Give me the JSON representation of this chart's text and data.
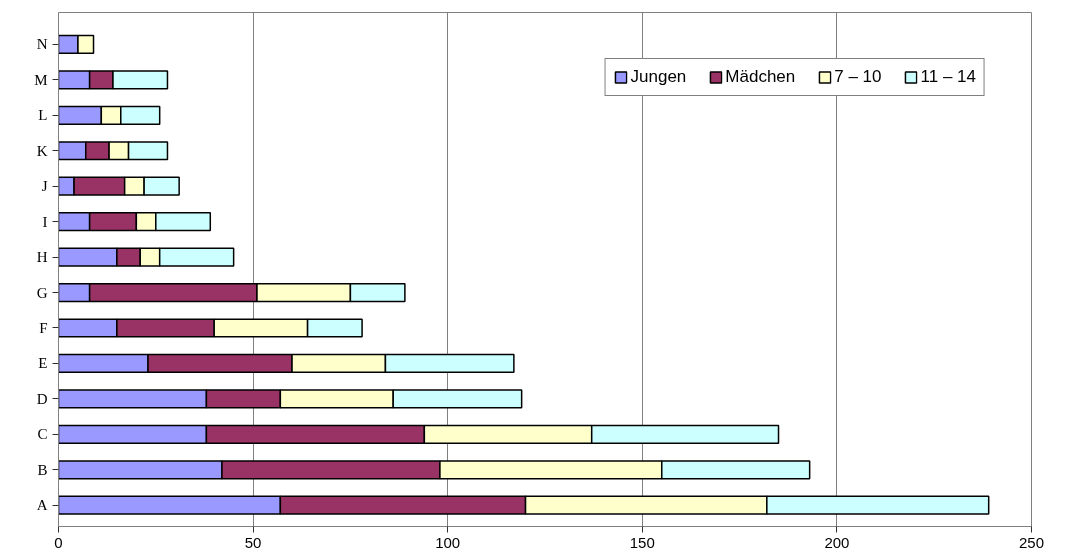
{
  "chart_data": {
    "type": "bar",
    "orientation": "horizontal",
    "stacked": true,
    "categories": [
      "N",
      "M",
      "L",
      "K",
      "J",
      "I",
      "H",
      "G",
      "F",
      "E",
      "D",
      "C",
      "B",
      "A"
    ],
    "series": [
      {
        "name": "Jungen",
        "color": "#9999ff",
        "values": [
          5,
          8,
          11,
          7,
          4,
          8,
          15,
          8,
          15,
          23,
          38,
          38,
          42,
          57
        ]
      },
      {
        "name": "Mädchen",
        "color": "#993366",
        "values": [
          null,
          6,
          null,
          6,
          13,
          12,
          6,
          43,
          25,
          37,
          19,
          56,
          56,
          63
        ]
      },
      {
        "name": "7 – 10",
        "color": "#ffffcc",
        "values": [
          4,
          null,
          5,
          5,
          5,
          5,
          5,
          24,
          24,
          24,
          29,
          43,
          57,
          62
        ]
      },
      {
        "name": "11 – 14",
        "color": "#ccffff",
        "values": [
          null,
          14,
          10,
          10,
          9,
          14,
          19,
          14,
          14,
          33,
          33,
          48,
          38,
          57
        ]
      }
    ],
    "xlim": [
      0,
      250
    ],
    "xticks": [
      0,
      50,
      100,
      150,
      200,
      250
    ],
    "grid": "x",
    "legend": "top right"
  }
}
